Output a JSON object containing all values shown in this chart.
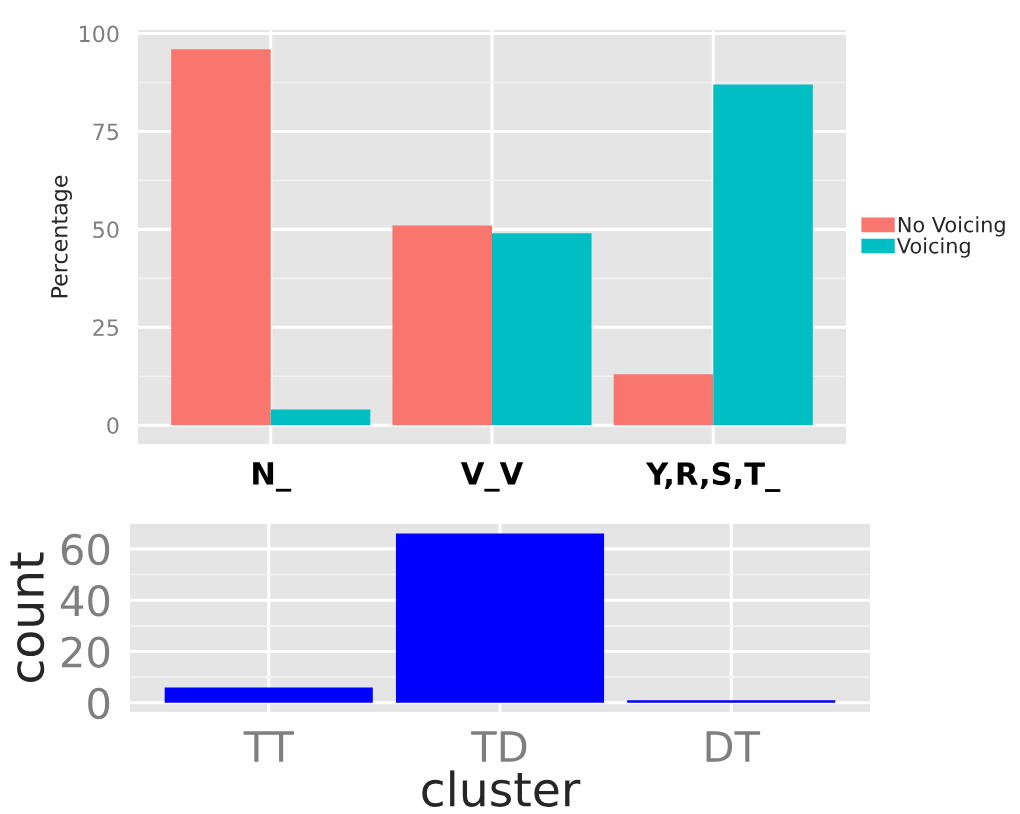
{
  "chart_data": [
    {
      "type": "bar",
      "ylabel": "Percentage",
      "categories": [
        "N_",
        "V_V",
        "Y,R,S,T_"
      ],
      "series": [
        {
          "name": "No Voicing",
          "color": "#f8766d",
          "values": [
            96,
            51,
            13
          ]
        },
        {
          "name": "Voicing",
          "color": "#00bfc4",
          "values": [
            4,
            49,
            87
          ]
        }
      ],
      "ylim": [
        -4.8,
        100.9
      ],
      "yticks": [
        0,
        25,
        50,
        75,
        100
      ],
      "grid": true,
      "legend": "right"
    },
    {
      "type": "bar",
      "xlabel": "cluster",
      "ylabel": "count",
      "categories": [
        "TT",
        "TD",
        "DT"
      ],
      "series": [
        {
          "color": "#0000ff",
          "values": [
            6,
            66,
            1
          ]
        }
      ],
      "ylim": [
        -3.6,
        69.7
      ],
      "yticks": [
        0,
        20,
        40,
        60
      ],
      "grid": true
    }
  ]
}
